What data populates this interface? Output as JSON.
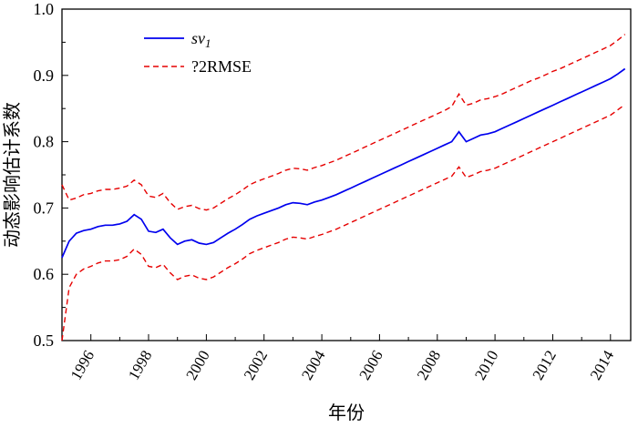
{
  "chart_data": {
    "type": "line",
    "title": "",
    "xlabel": "年份",
    "ylabel": "动态影响估计系数",
    "xlim": [
      1995,
      2014.7
    ],
    "ylim": [
      0.5,
      1.0
    ],
    "xticks": [
      1996,
      1998,
      2000,
      2002,
      2004,
      2006,
      2008,
      2010,
      2012,
      2014
    ],
    "yticks": [
      0.5,
      0.6,
      0.7,
      0.8,
      0.9,
      1.0
    ],
    "grid": false,
    "legend_position": "upper-left-inside",
    "colors": {
      "sv1": "#0000ee",
      "band": "#e60000",
      "axis": "#000000"
    },
    "legend": [
      {
        "label_main": "sv",
        "label_sub": "1",
        "style": "solid-blue"
      },
      {
        "label_main": "?2RMSE",
        "label_sub": "",
        "style": "dashed-red"
      }
    ],
    "x": [
      1995,
      1995.25,
      1995.5,
      1995.75,
      1996,
      1996.25,
      1996.5,
      1996.75,
      1997,
      1997.25,
      1997.5,
      1997.75,
      1998,
      1998.25,
      1998.5,
      1998.75,
      1999,
      1999.25,
      1999.5,
      1999.75,
      2000,
      2000.25,
      2000.5,
      2000.75,
      2001,
      2001.25,
      2001.5,
      2001.75,
      2002,
      2002.25,
      2002.5,
      2002.75,
      2003,
      2003.25,
      2003.5,
      2003.75,
      2004,
      2004.25,
      2004.5,
      2004.75,
      2005,
      2005.25,
      2005.5,
      2005.75,
      2006,
      2006.25,
      2006.5,
      2006.75,
      2007,
      2007.25,
      2007.5,
      2007.75,
      2008,
      2008.25,
      2008.5,
      2008.75,
      2009,
      2009.25,
      2009.5,
      2009.75,
      2010,
      2010.25,
      2010.5,
      2010.75,
      2011,
      2011.25,
      2011.5,
      2011.75,
      2012,
      2012.25,
      2012.5,
      2012.75,
      2013,
      2013.25,
      2013.5,
      2013.75,
      2014,
      2014.25,
      2014.5
    ],
    "series": [
      {
        "name": "sv1",
        "values": [
          0.625,
          0.65,
          0.662,
          0.666,
          0.668,
          0.672,
          0.674,
          0.674,
          0.676,
          0.68,
          0.69,
          0.683,
          0.665,
          0.663,
          0.668,
          0.655,
          0.645,
          0.65,
          0.652,
          0.647,
          0.645,
          0.648,
          0.655,
          0.662,
          0.668,
          0.675,
          0.683,
          0.688,
          0.692,
          0.696,
          0.7,
          0.705,
          0.708,
          0.707,
          0.705,
          0.709,
          0.712,
          0.716,
          0.72,
          0.725,
          0.73,
          0.735,
          0.74,
          0.745,
          0.75,
          0.755,
          0.76,
          0.765,
          0.77,
          0.775,
          0.78,
          0.785,
          0.79,
          0.795,
          0.8,
          0.815,
          0.8,
          0.805,
          0.81,
          0.812,
          0.815,
          0.82,
          0.825,
          0.83,
          0.835,
          0.84,
          0.845,
          0.85,
          0.855,
          0.86,
          0.865,
          0.87,
          0.875,
          0.88,
          0.885,
          0.89,
          0.895,
          0.902,
          0.91
        ]
      },
      {
        "name": "upper_2rmse",
        "values": [
          0.735,
          0.712,
          0.715,
          0.72,
          0.722,
          0.726,
          0.728,
          0.728,
          0.73,
          0.733,
          0.742,
          0.735,
          0.718,
          0.716,
          0.722,
          0.708,
          0.698,
          0.702,
          0.704,
          0.699,
          0.697,
          0.7,
          0.707,
          0.714,
          0.72,
          0.727,
          0.735,
          0.74,
          0.744,
          0.748,
          0.752,
          0.757,
          0.76,
          0.759,
          0.757,
          0.761,
          0.764,
          0.768,
          0.772,
          0.777,
          0.782,
          0.787,
          0.792,
          0.797,
          0.802,
          0.807,
          0.812,
          0.817,
          0.822,
          0.827,
          0.832,
          0.837,
          0.842,
          0.847,
          0.853,
          0.872,
          0.855,
          0.858,
          0.863,
          0.865,
          0.868,
          0.872,
          0.877,
          0.882,
          0.887,
          0.892,
          0.896,
          0.901,
          0.906,
          0.91,
          0.915,
          0.92,
          0.925,
          0.93,
          0.935,
          0.94,
          0.945,
          0.953,
          0.962
        ]
      },
      {
        "name": "lower_2rmse",
        "values": [
          0.5,
          0.58,
          0.6,
          0.608,
          0.612,
          0.617,
          0.62,
          0.62,
          0.622,
          0.627,
          0.638,
          0.63,
          0.612,
          0.61,
          0.615,
          0.602,
          0.592,
          0.597,
          0.599,
          0.594,
          0.592,
          0.596,
          0.603,
          0.61,
          0.616,
          0.623,
          0.631,
          0.636,
          0.64,
          0.644,
          0.648,
          0.653,
          0.656,
          0.655,
          0.653,
          0.657,
          0.66,
          0.664,
          0.668,
          0.673,
          0.678,
          0.683,
          0.688,
          0.693,
          0.698,
          0.703,
          0.708,
          0.713,
          0.718,
          0.723,
          0.728,
          0.733,
          0.738,
          0.743,
          0.748,
          0.762,
          0.746,
          0.75,
          0.755,
          0.757,
          0.76,
          0.765,
          0.77,
          0.775,
          0.78,
          0.785,
          0.79,
          0.795,
          0.8,
          0.805,
          0.81,
          0.815,
          0.82,
          0.825,
          0.83,
          0.835,
          0.84,
          0.848,
          0.856
        ]
      }
    ]
  }
}
